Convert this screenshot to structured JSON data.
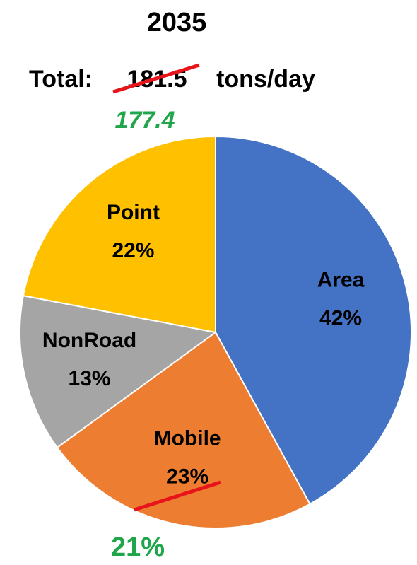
{
  "chart_data": {
    "type": "pie",
    "title": "2035",
    "total_label": "Total:",
    "total": 181.5,
    "total_unit": "tons/day",
    "revised_total": 177.4,
    "categories": [
      "Area",
      "Mobile",
      "NonRoad",
      "Point"
    ],
    "values": [
      42,
      23,
      13,
      22
    ],
    "value_labels": [
      "42%",
      "23%",
      "13%",
      "22%"
    ],
    "colors": [
      "#4472c4",
      "#ed7d31",
      "#a5a5a5",
      "#ffc000"
    ],
    "annotations": [
      "21%"
    ]
  }
}
